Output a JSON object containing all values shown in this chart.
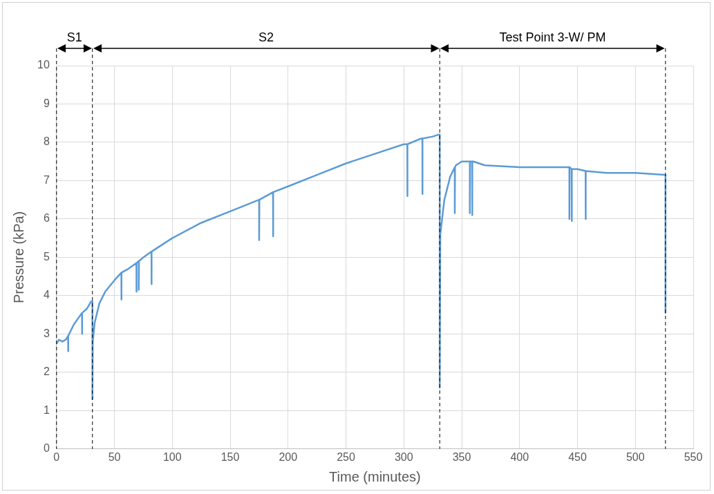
{
  "chart_data": {
    "type": "line",
    "xlabel": "Time (minutes)",
    "ylabel": "Pressure (kPa)",
    "xlim": [
      0,
      550
    ],
    "xticks": [
      0,
      50,
      100,
      150,
      200,
      250,
      300,
      350,
      400,
      450,
      500,
      550
    ],
    "ylim": [
      0,
      10
    ],
    "yticks": [
      0,
      1,
      2,
      3,
      4,
      5,
      6,
      7,
      8,
      9,
      10
    ],
    "grid": true,
    "legend": false,
    "marker": "none",
    "line_style": "solid",
    "series": [
      {
        "color": "#5b9bd5",
        "x": [
          0,
          2,
          5,
          8,
          10,
          10,
          10.2,
          15,
          22,
          22,
          22.2,
          26,
          30,
          31,
          31,
          31.3,
          33,
          37,
          42,
          50,
          56,
          56,
          56.2,
          62,
          69,
          69,
          69.2,
          71,
          71,
          71.2,
          75,
          82,
          82,
          82.2,
          100,
          125,
          150,
          175,
          175,
          175.2,
          187,
          187,
          187.2,
          200,
          225,
          250,
          275,
          300,
          303,
          303,
          303.2,
          315,
          316,
          316,
          316.2,
          325,
          330,
          331,
          331,
          331.5,
          335,
          340,
          344,
          344,
          344.2,
          345,
          350,
          355,
          357,
          357,
          357.2,
          359,
          359,
          359.2,
          360,
          370,
          400,
          425,
          443,
          443,
          443.2,
          445,
          445,
          445.2,
          450,
          457,
          457,
          457.2,
          475,
          500,
          525,
          526,
          526
        ],
        "values": [
          2.75,
          2.85,
          2.8,
          2.85,
          2.95,
          2.55,
          2.95,
          3.25,
          3.55,
          3.0,
          3.55,
          3.65,
          3.85,
          3.85,
          1.3,
          2.8,
          3.3,
          3.8,
          4.1,
          4.4,
          4.6,
          3.9,
          4.6,
          4.7,
          4.85,
          4.1,
          4.85,
          4.9,
          4.15,
          4.9,
          5.0,
          5.15,
          4.3,
          5.15,
          5.5,
          5.9,
          6.2,
          6.5,
          5.45,
          6.5,
          6.7,
          5.55,
          6.7,
          6.85,
          7.15,
          7.45,
          7.7,
          7.95,
          7.95,
          6.6,
          7.95,
          8.1,
          8.1,
          6.65,
          8.1,
          8.15,
          8.2,
          8.2,
          1.6,
          5.6,
          6.5,
          7.1,
          7.35,
          6.15,
          7.35,
          7.4,
          7.5,
          7.5,
          7.5,
          6.15,
          7.5,
          7.5,
          6.1,
          7.5,
          7.5,
          7.4,
          7.35,
          7.35,
          7.35,
          6.0,
          7.35,
          7.3,
          5.95,
          7.3,
          7.3,
          7.25,
          6.0,
          7.25,
          7.2,
          7.2,
          7.15,
          7.15,
          3.55
        ]
      }
    ],
    "ref_lines": [
      {
        "axis": "x",
        "value": 0,
        "line_style": "dashed",
        "color": "#000000"
      },
      {
        "axis": "x",
        "value": 31,
        "line_style": "dashed",
        "color": "#000000"
      },
      {
        "axis": "x",
        "value": 331,
        "line_style": "dashed",
        "color": "#000000"
      },
      {
        "axis": "x",
        "value": 526,
        "line_style": "dashed",
        "color": "#000000"
      }
    ],
    "annotations": [
      "S1",
      "S2",
      "Test Point 3-W/ PM"
    ]
  }
}
